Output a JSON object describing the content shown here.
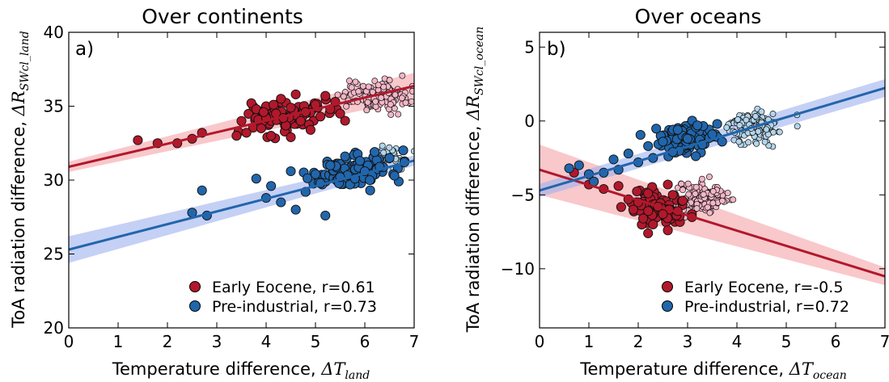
{
  "colors": {
    "eocene": "#b2182b",
    "eocene_light": "#f4b6c7",
    "eocene_band": "#f3a3a8",
    "preind": "#2166ac",
    "preind_light": "#b3d5ec",
    "preind_band": "#9fb0ef"
  },
  "chart_data": [
    {
      "type": "scatter",
      "panel_label": "a)",
      "title": "Over continents",
      "xlabel_main": "Temperature difference, ",
      "xlabel_math": "ΔT",
      "xlabel_sub": "land",
      "ylabel_main": "ToA radiation difference, ",
      "ylabel_math": "ΔR",
      "ylabel_sub": "SWcl_land",
      "xlim": [
        0,
        7
      ],
      "ylim": [
        20,
        40
      ],
      "xticks": [
        "0",
        "1",
        "2",
        "3",
        "4",
        "5",
        "6",
        "7"
      ],
      "yticks": [
        "20",
        "25",
        "30",
        "35",
        "40"
      ],
      "xtick_values": [
        0,
        1,
        2,
        3,
        4,
        5,
        6,
        7
      ],
      "ytick_values": [
        20,
        25,
        30,
        35,
        40
      ],
      "legend_position": "lower-right",
      "series": [
        {
          "name": "Early Eocene, r=0.61",
          "color_key": "eocene",
          "fit": {
            "intercept": 30.9,
            "slope": 0.78,
            "band_lo": 0.35,
            "band_hi": 0.9
          },
          "points": [
            [
              1.4,
              32.7
            ],
            [
              1.8,
              32.5
            ],
            [
              2.2,
              32.5
            ],
            [
              2.5,
              32.8
            ],
            [
              2.7,
              33.2
            ],
            [
              3.4,
              33.0
            ],
            [
              3.5,
              34.0
            ],
            [
              3.6,
              33.2
            ],
            [
              3.7,
              35.2
            ],
            [
              3.8,
              34.8
            ],
            [
              3.9,
              33.5
            ],
            [
              4.0,
              34.2
            ],
            [
              4.0,
              35.0
            ],
            [
              4.1,
              33.0
            ],
            [
              4.2,
              34.5
            ],
            [
              4.3,
              35.5
            ],
            [
              4.4,
              33.7
            ],
            [
              4.5,
              34.9
            ],
            [
              4.5,
              32.9
            ],
            [
              4.6,
              35.8
            ],
            [
              4.7,
              34.0
            ],
            [
              4.8,
              34.6
            ],
            [
              4.9,
              33.4
            ],
            [
              5.0,
              35.1
            ],
            [
              5.1,
              34.3
            ],
            [
              5.2,
              35.7
            ],
            [
              5.3,
              34.8
            ],
            [
              5.4,
              35.3
            ],
            [
              5.5,
              34.5
            ],
            [
              4.35,
              34.2
            ],
            [
              4.15,
              35.1
            ],
            [
              3.95,
              34.6
            ]
          ],
          "cloud": {
            "x_center": 4.4,
            "x_spread": 0.7,
            "y_center": 34.3,
            "y_spread": 0.9,
            "n": 80
          },
          "light_cloud": {
            "x_center": 6.2,
            "x_spread": 0.55,
            "y_center": 35.7,
            "y_spread": 0.85,
            "n": 140
          }
        },
        {
          "name": "Pre-industrial, r=0.73",
          "color_key": "preind",
          "fit": {
            "intercept": 25.3,
            "slope": 0.86,
            "band_lo": 0.9,
            "band_hi": 0.35
          },
          "points": [
            [
              2.5,
              27.8
            ],
            [
              2.7,
              29.3
            ],
            [
              2.8,
              27.6
            ],
            [
              3.8,
              30.1
            ],
            [
              4.0,
              28.8
            ],
            [
              4.1,
              29.6
            ],
            [
              4.3,
              28.5
            ],
            [
              4.5,
              30.6
            ],
            [
              4.6,
              28.0
            ],
            [
              4.8,
              29.2
            ],
            [
              5.0,
              30.4
            ],
            [
              5.1,
              29.8
            ],
            [
              5.2,
              27.6
            ],
            [
              5.3,
              31.0
            ],
            [
              5.5,
              30.2
            ],
            [
              5.6,
              31.6
            ],
            [
              5.7,
              29.7
            ],
            [
              5.9,
              31.3
            ],
            [
              6.0,
              30.6
            ],
            [
              6.2,
              31.9
            ],
            [
              6.3,
              30.9
            ],
            [
              6.5,
              31.5
            ],
            [
              6.6,
              30.3
            ],
            [
              6.8,
              31.2
            ],
            [
              5.8,
              30.1
            ],
            [
              6.1,
              30.0
            ]
          ],
          "cloud": {
            "x_center": 5.7,
            "x_spread": 0.75,
            "y_center": 30.5,
            "y_spread": 0.9,
            "n": 110
          },
          "light_cloud": {
            "x_center": 6.5,
            "x_spread": 0.3,
            "y_center": 31.7,
            "y_spread": 0.55,
            "n": 40
          }
        }
      ]
    },
    {
      "type": "scatter",
      "panel_label": "b)",
      "title": "Over oceans",
      "xlabel_main": "Temperature difference, ",
      "xlabel_math": "ΔT",
      "xlabel_sub": "ocean",
      "ylabel_main": "ToA radiation difference, ",
      "ylabel_math": "ΔR",
      "ylabel_sub": "SWcl_ocean",
      "xlim": [
        0,
        7
      ],
      "ylim": [
        -14,
        6
      ],
      "xticks": [
        "0",
        "1",
        "2",
        "3",
        "4",
        "5",
        "6",
        "7"
      ],
      "yticks": [
        "−10",
        "−5",
        "0",
        "5"
      ],
      "xtick_values": [
        0,
        1,
        2,
        3,
        4,
        5,
        6,
        7
      ],
      "ytick_values": [
        -10,
        -5,
        0,
        5
      ],
      "legend_position": "lower-right",
      "series": [
        {
          "name": "Early Eocene, r=-0.5",
          "color_key": "eocene",
          "fit": {
            "intercept": -3.3,
            "slope": -1.03,
            "band_lo": 1.7,
            "band_hi": 0.6
          },
          "points": [
            [
              0.7,
              -3.5
            ],
            [
              1.0,
              -4.3
            ],
            [
              1.3,
              -4.6
            ],
            [
              1.6,
              -4.4
            ],
            [
              1.8,
              -5.3
            ],
            [
              1.9,
              -6.0
            ],
            [
              2.0,
              -5.5
            ],
            [
              2.1,
              -6.6
            ],
            [
              2.2,
              -4.9
            ],
            [
              2.3,
              -7.0
            ],
            [
              2.4,
              -5.8
            ],
            [
              2.5,
              -6.3
            ],
            [
              2.6,
              -7.4
            ],
            [
              2.7,
              -5.0
            ],
            [
              2.8,
              -6.1
            ],
            [
              2.9,
              -5.4
            ],
            [
              2.2,
              -7.6
            ],
            [
              2.6,
              -4.3
            ]
          ],
          "cloud": {
            "x_center": 2.35,
            "x_spread": 0.45,
            "y_center": -5.9,
            "y_spread": 0.85,
            "n": 120
          },
          "light_cloud": {
            "x_center": 3.3,
            "x_spread": 0.4,
            "y_center": -5.2,
            "y_spread": 0.9,
            "n": 140
          }
        },
        {
          "name": "Pre-industrial, r=0.72",
          "color_key": "preind",
          "fit": {
            "intercept": -4.7,
            "slope": 0.99,
            "band_lo": 0.45,
            "band_hi": 0.6
          },
          "points": [
            [
              0.6,
              -3.2
            ],
            [
              0.8,
              -3.0
            ],
            [
              1.0,
              -3.6
            ],
            [
              1.1,
              -4.1
            ],
            [
              1.3,
              -3.5
            ],
            [
              1.5,
              -2.6
            ],
            [
              1.6,
              -3.3
            ],
            [
              1.8,
              -2.2
            ],
            [
              2.0,
              -2.8
            ],
            [
              2.2,
              -1.7
            ],
            [
              2.3,
              -2.5
            ],
            [
              2.5,
              -1.4
            ],
            [
              2.7,
              -2.1
            ],
            [
              2.8,
              -0.6
            ],
            [
              3.0,
              -1.2
            ],
            [
              3.2,
              -0.3
            ],
            [
              3.3,
              -1.6
            ],
            [
              3.5,
              -0.9
            ],
            [
              3.6,
              -0.2
            ],
            [
              3.7,
              -1.4
            ]
          ],
          "cloud": {
            "x_center": 3.0,
            "x_spread": 0.55,
            "y_center": -1.2,
            "y_spread": 0.8,
            "n": 110
          },
          "light_cloud": {
            "x_center": 4.3,
            "x_spread": 0.45,
            "y_center": -0.4,
            "y_spread": 0.8,
            "n": 150
          }
        }
      ]
    }
  ]
}
